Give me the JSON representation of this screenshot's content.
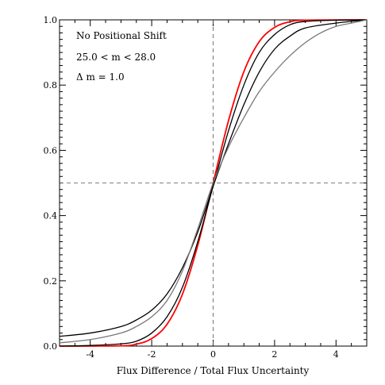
{
  "chart_data": {
    "type": "line",
    "xlabel": "Flux Difference / Total Flux Uncertainty",
    "ylabel": "",
    "xlim": [
      -5,
      5
    ],
    "ylim": [
      0,
      1
    ],
    "x_ticks": [
      -4,
      -2,
      0,
      2,
      4
    ],
    "x_tick_labels": [
      "-4",
      "-2",
      "0",
      "2",
      "4"
    ],
    "y_ticks": [
      0,
      0.2,
      0.4,
      0.6,
      0.8,
      1.0
    ],
    "y_tick_labels": [
      "0.0",
      "0.2",
      "0.4",
      "0.6",
      "0.8",
      "1.0"
    ],
    "annotations": [
      "No Positional Shift",
      "25.0 < m < 28.0",
      "Δ m = 1.0"
    ],
    "reference_lines": {
      "x": 0,
      "y": 0.5,
      "style": "dashed"
    },
    "grid": false,
    "legend": "none",
    "series": [
      {
        "color": "#ff0000",
        "x": [
          -5,
          -3,
          -2.5,
          -2,
          -1.5,
          -1,
          -0.5,
          0,
          0.5,
          1,
          1.5,
          2,
          2.5,
          3,
          5
        ],
        "y": [
          0.0,
          0.001,
          0.006,
          0.023,
          0.067,
          0.159,
          0.309,
          0.5,
          0.691,
          0.841,
          0.933,
          0.977,
          0.994,
          0.999,
          1.0
        ]
      },
      {
        "color": "#000000",
        "x": [
          -5,
          -4,
          -3,
          -2.5,
          -2,
          -1.5,
          -1,
          -0.5,
          0,
          0.5,
          1,
          1.5,
          2,
          2.5,
          3,
          4,
          5
        ],
        "y": [
          0.0,
          0.002,
          0.007,
          0.015,
          0.04,
          0.09,
          0.18,
          0.32,
          0.49,
          0.66,
          0.8,
          0.9,
          0.955,
          0.985,
          0.995,
          0.999,
          1.0
        ]
      },
      {
        "color": "#000000",
        "x": [
          -5,
          -4,
          -3,
          -2.5,
          -2,
          -1.5,
          -1,
          -0.5,
          0,
          0.5,
          1,
          1.5,
          2,
          2.5,
          3,
          4,
          5
        ],
        "y": [
          0.03,
          0.04,
          0.06,
          0.08,
          0.11,
          0.16,
          0.24,
          0.35,
          0.49,
          0.62,
          0.74,
          0.84,
          0.91,
          0.95,
          0.975,
          0.99,
          1.0
        ]
      },
      {
        "color": "#777777",
        "x": [
          -5,
          -4,
          -3,
          -2.5,
          -2,
          -1.5,
          -1,
          -0.5,
          0,
          0.5,
          1,
          1.5,
          2,
          2.5,
          3,
          3.5,
          4,
          4.5,
          5
        ],
        "y": [
          0.01,
          0.02,
          0.04,
          0.06,
          0.09,
          0.14,
          0.23,
          0.36,
          0.5,
          0.61,
          0.7,
          0.78,
          0.84,
          0.89,
          0.93,
          0.96,
          0.98,
          0.99,
          1.0
        ]
      }
    ]
  }
}
